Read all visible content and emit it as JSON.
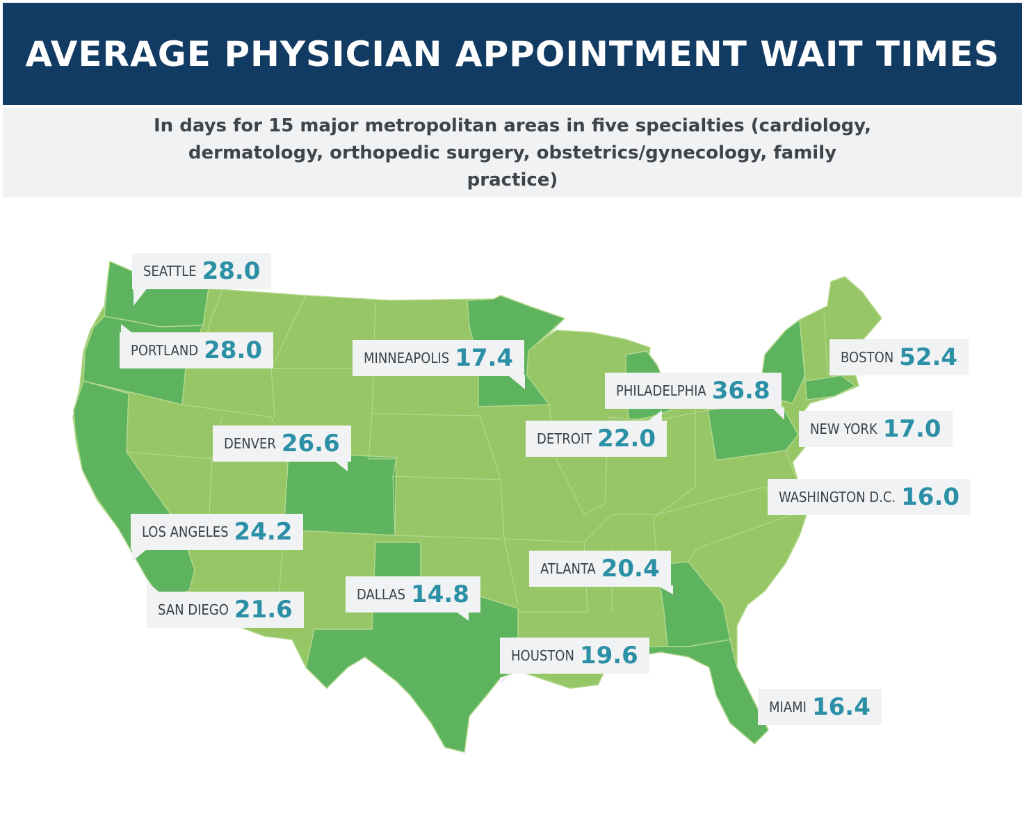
{
  "title": "AVERAGE PHYSICIAN APPOINTMENT WAIT TIMES",
  "subtitle": "In days for 15 major metropolitan areas in five specialties (cardiology, dermatology, orthopedic surgery, obstetrics/gynecology, family practice)",
  "colors": {
    "header": "#113b62",
    "land_light": "#96c665",
    "land_dark": "#5db35e",
    "value": "#2b8fa6"
  },
  "cities": [
    {
      "name": "SEATTLE",
      "value": "28.0"
    },
    {
      "name": "PORTLAND",
      "value": "28.0"
    },
    {
      "name": "MINNEAPOLIS",
      "value": "17.4"
    },
    {
      "name": "BOSTON",
      "value": "52.4"
    },
    {
      "name": "PHILADELPHIA",
      "value": "36.8"
    },
    {
      "name": "NEW YORK",
      "value": "17.0"
    },
    {
      "name": "DETROIT",
      "value": "22.0"
    },
    {
      "name": "DENVER",
      "value": "26.6"
    },
    {
      "name": "WASHINGTON D.C.",
      "value": "16.0"
    },
    {
      "name": "LOS ANGELES",
      "value": "24.2"
    },
    {
      "name": "ATLANTA",
      "value": "20.4"
    },
    {
      "name": "DALLAS",
      "value": "14.8"
    },
    {
      "name": "SAN DIEGO",
      "value": "21.6"
    },
    {
      "name": "HOUSTON",
      "value": "19.6"
    },
    {
      "name": "MIAMI",
      "value": "16.4"
    }
  ]
}
